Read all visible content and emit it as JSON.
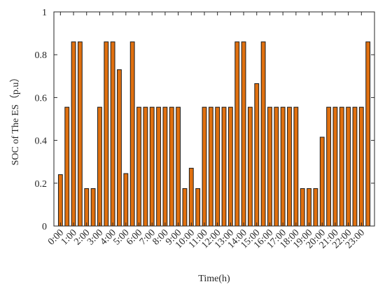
{
  "chart_data": {
    "type": "bar",
    "title": "",
    "xlabel": "Time(h)",
    "ylabel": "SOC of The ES（p.u）",
    "ylim": [
      0,
      1
    ],
    "yticks": [
      "0",
      "0.2",
      "0.4",
      "0.6",
      "0.8",
      "1"
    ],
    "xticks": [
      "0:00",
      "1:00",
      "2:00",
      "3:00",
      "4:00",
      "5:00",
      "6:00",
      "7:00",
      "8:00",
      "9:00",
      "10:00",
      "11:00",
      "12:00",
      "13:00",
      "14:00",
      "15:00",
      "16:00",
      "17:00",
      "18:00",
      "19:00",
      "20:00",
      "21:00",
      "22:00",
      "23:00"
    ],
    "bar_color": "#e0700f",
    "bar_edge_color": "#1a1a1a",
    "values": [
      0.24,
      0.555,
      0.86,
      0.86,
      0.175,
      0.175,
      0.555,
      0.86,
      0.86,
      0.73,
      0.245,
      0.86,
      0.555,
      0.555,
      0.555,
      0.555,
      0.555,
      0.555,
      0.555,
      0.175,
      0.27,
      0.175,
      0.555,
      0.555,
      0.555,
      0.555,
      0.555,
      0.86,
      0.86,
      0.555,
      0.665,
      0.86,
      0.555,
      0.555,
      0.555,
      0.555,
      0.555,
      0.175,
      0.175,
      0.175,
      0.415,
      0.555,
      0.555,
      0.555,
      0.555,
      0.555,
      0.555,
      0.86
    ]
  }
}
